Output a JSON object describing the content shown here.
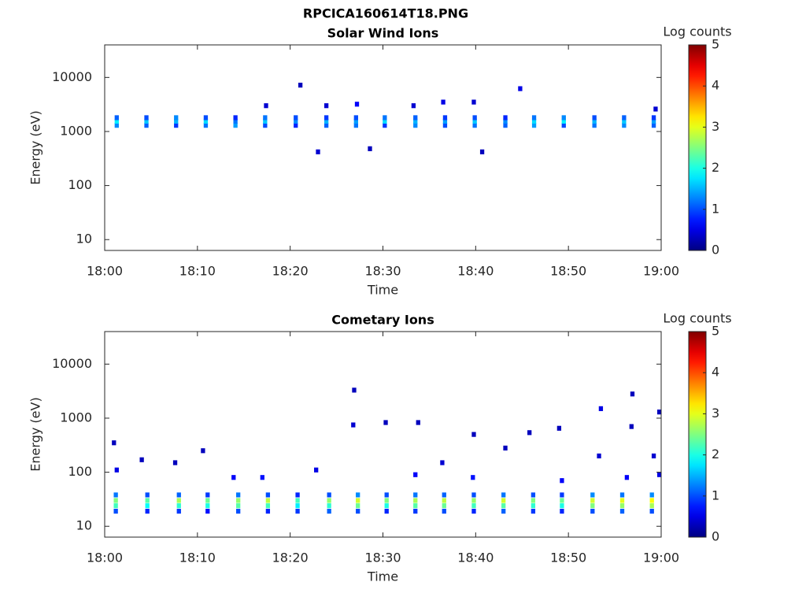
{
  "title": "RPCICA160614T18.PNG",
  "chart_data": [
    {
      "type": "heatmap",
      "title": "Solar Wind Ions",
      "x_label": "Time",
      "y_label": "Energy (eV)",
      "colorbar_label": "Log counts",
      "clim": [
        0,
        5
      ],
      "cticks": [
        0,
        1,
        2,
        3,
        4,
        5
      ],
      "log_y": true,
      "xlim": [
        0,
        60
      ],
      "xticks": [
        {
          "value": 0,
          "label": "18:00"
        },
        {
          "value": 10,
          "label": "18:10"
        },
        {
          "value": 20,
          "label": "18:20"
        },
        {
          "value": 30,
          "label": "18:30"
        },
        {
          "value": 40,
          "label": "18:40"
        },
        {
          "value": 50,
          "label": "18:50"
        },
        {
          "value": 60,
          "label": "19:00"
        }
      ],
      "ylim": [
        6.3,
        40000
      ],
      "yticks": [
        10,
        100,
        1000,
        10000
      ],
      "x": [
        1.3,
        1.3,
        1.3,
        4.5,
        4.5,
        4.5,
        7.7,
        7.7,
        7.7,
        10.9,
        10.9,
        10.9,
        14.1,
        14.1,
        14.1,
        17.3,
        17.3,
        17.3,
        20.6,
        20.6,
        20.6,
        23.9,
        23.9,
        23.9,
        27.1,
        27.1,
        27.1,
        30.2,
        30.2,
        30.2,
        33.5,
        33.5,
        33.5,
        36.7,
        36.7,
        36.7,
        39.9,
        39.9,
        39.9,
        43.2,
        43.2,
        43.2,
        46.3,
        46.3,
        46.3,
        49.5,
        49.5,
        49.5,
        52.8,
        52.8,
        52.8,
        56.0,
        56.0,
        56.0,
        59.2,
        59.2,
        59.2,
        21.1,
        23.0,
        28.6,
        40.7,
        44.8,
        17.4,
        27.2,
        36.5,
        39.8,
        59.4,
        23.9,
        33.3
      ],
      "y": [
        1300,
        1550,
        1800,
        1300,
        1550,
        1800,
        1300,
        1550,
        1800,
        1300,
        1550,
        1800,
        1300,
        1550,
        1800,
        1300,
        1550,
        1800,
        1300,
        1550,
        1800,
        1300,
        1550,
        1800,
        1300,
        1550,
        1800,
        1300,
        1550,
        1800,
        1300,
        1550,
        1800,
        1300,
        1550,
        1800,
        1300,
        1550,
        1800,
        1300,
        1550,
        1800,
        1300,
        1550,
        1800,
        1300,
        1550,
        1800,
        1300,
        1550,
        1800,
        1300,
        1550,
        1800,
        1300,
        1550,
        1800,
        7200,
        420,
        480,
        420,
        6200,
        3000,
        3200,
        3500,
        3500,
        2600,
        3000,
        3000
      ],
      "values": [
        1.3,
        1.8,
        1.1,
        1.1,
        1.6,
        1.0,
        0.9,
        1.5,
        1.3,
        1.2,
        1.7,
        1.0,
        1.4,
        1.2,
        0.8,
        1.0,
        1.6,
        1.2,
        0.8,
        1.3,
        1.0,
        1.1,
        1.5,
        0.9,
        1.2,
        1.4,
        1.0,
        0.9,
        1.7,
        1.2,
        1.3,
        1.5,
        1.1,
        1.0,
        1.4,
        0.9,
        1.2,
        1.6,
        1.0,
        1.1,
        1.3,
        0.8,
        1.4,
        1.7,
        1.2,
        1.0,
        1.8,
        1.3,
        1.2,
        1.5,
        1.0,
        1.3,
        1.6,
        1.1,
        1.1,
        1.4,
        0.9,
        0.3,
        0.4,
        0.3,
        0.3,
        0.5,
        0.4,
        0.6,
        0.5,
        0.4,
        0.4,
        0.4,
        0.4
      ]
    },
    {
      "type": "heatmap",
      "title": "Cometary Ions",
      "x_label": "Time",
      "y_label": "Energy (eV)",
      "colorbar_label": "Log counts",
      "clim": [
        0,
        5
      ],
      "cticks": [
        0,
        1,
        2,
        3,
        4,
        5
      ],
      "log_y": true,
      "xlim": [
        0,
        60
      ],
      "xticks": [
        {
          "value": 0,
          "label": "18:00"
        },
        {
          "value": 10,
          "label": "18:10"
        },
        {
          "value": 20,
          "label": "18:20"
        },
        {
          "value": 30,
          "label": "18:30"
        },
        {
          "value": 40,
          "label": "18:40"
        },
        {
          "value": 50,
          "label": "18:50"
        },
        {
          "value": 60,
          "label": "19:00"
        }
      ],
      "ylim": [
        6.3,
        40000
      ],
      "yticks": [
        10,
        100,
        1000,
        10000
      ],
      "x": [
        1.2,
        1.2,
        1.2,
        1.2,
        4.6,
        4.6,
        4.6,
        4.6,
        8.0,
        8.0,
        8.0,
        8.0,
        11.1,
        11.1,
        11.1,
        11.1,
        14.4,
        14.4,
        14.4,
        14.4,
        17.6,
        17.6,
        17.6,
        17.6,
        20.8,
        20.8,
        20.8,
        20.8,
        24.2,
        24.2,
        24.2,
        24.2,
        27.3,
        27.3,
        27.3,
        27.3,
        30.4,
        30.4,
        30.4,
        30.4,
        33.5,
        33.5,
        33.5,
        33.5,
        36.6,
        36.6,
        36.6,
        36.6,
        39.8,
        39.8,
        39.8,
        39.8,
        43.0,
        43.0,
        43.0,
        43.0,
        46.2,
        46.2,
        46.2,
        46.2,
        49.3,
        49.3,
        49.3,
        49.3,
        52.6,
        52.6,
        52.6,
        52.6,
        55.8,
        55.8,
        55.8,
        55.8,
        59.0,
        59.0,
        59.0,
        59.0,
        1.0,
        1.3,
        4.0,
        7.6,
        10.6,
        13.9,
        17.0,
        22.8,
        26.9,
        26.8,
        30.3,
        33.8,
        33.5,
        36.4,
        39.8,
        39.7,
        43.2,
        45.8,
        49.0,
        49.3,
        53.5,
        53.3,
        56.9,
        56.8,
        56.3,
        59.8,
        59.2,
        59.8
      ],
      "y": [
        19,
        24,
        30,
        38,
        19,
        24,
        30,
        38,
        19,
        24,
        30,
        38,
        19,
        24,
        30,
        38,
        19,
        24,
        30,
        38,
        19,
        24,
        30,
        38,
        19,
        24,
        30,
        38,
        19,
        24,
        30,
        38,
        19,
        24,
        30,
        38,
        19,
        24,
        30,
        38,
        19,
        24,
        30,
        38,
        19,
        24,
        30,
        38,
        19,
        24,
        30,
        38,
        19,
        24,
        30,
        38,
        19,
        24,
        30,
        38,
        19,
        24,
        30,
        38,
        19,
        24,
        30,
        38,
        19,
        24,
        30,
        38,
        19,
        24,
        30,
        38,
        350,
        110,
        170,
        150,
        250,
        80,
        80,
        110,
        3300,
        750,
        830,
        830,
        90,
        150,
        500,
        80,
        280,
        540,
        650,
        70,
        1500,
        200,
        2800,
        700,
        80,
        1300,
        200,
        90
      ],
      "values": [
        1.0,
        2.2,
        2.5,
        1.2,
        0.8,
        1.9,
        2.3,
        1.0,
        0.9,
        2.1,
        2.7,
        1.1,
        0.7,
        2.0,
        2.4,
        0.9,
        1.0,
        2.3,
        2.6,
        1.2,
        0.8,
        2.2,
        2.8,
        1.0,
        0.9,
        1.8,
        2.2,
        0.8,
        1.1,
        2.1,
        2.6,
        1.0,
        1.0,
        2.4,
        2.9,
        1.3,
        0.8,
        2.0,
        2.5,
        1.0,
        0.9,
        2.3,
        2.7,
        1.2,
        1.0,
        2.4,
        2.8,
        1.1,
        0.8,
        2.2,
        2.6,
        1.0,
        1.1,
        2.3,
        2.9,
        1.2,
        0.9,
        2.1,
        2.5,
        1.0,
        0.8,
        2.0,
        2.4,
        0.9,
        1.0,
        2.5,
        2.9,
        1.3,
        1.1,
        2.6,
        3.0,
        1.2,
        1.0,
        2.7,
        3.1,
        1.3,
        0.3,
        0.5,
        0.3,
        0.3,
        0.3,
        0.6,
        0.7,
        0.5,
        0.3,
        0.4,
        0.3,
        0.3,
        0.6,
        0.4,
        0.3,
        0.7,
        0.3,
        0.3,
        0.3,
        0.6,
        0.5,
        0.4,
        0.3,
        0.3,
        0.6,
        0.3,
        0.4,
        0.5
      ]
    }
  ]
}
